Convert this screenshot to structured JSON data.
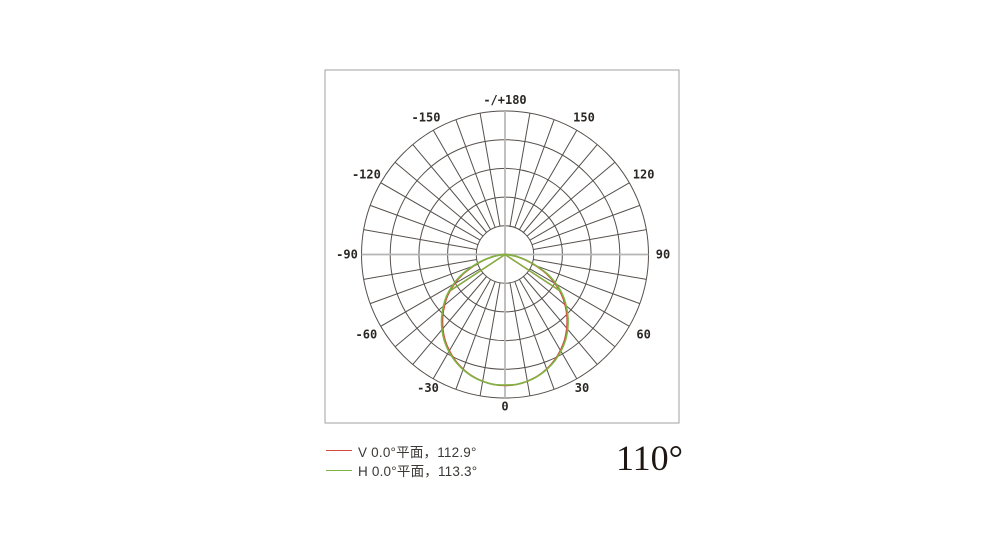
{
  "window": {
    "background": "#ffffff"
  },
  "chart_data": {
    "type": "polar",
    "title": "",
    "angle_unit": "degrees",
    "orientation": "0 at bottom, +/-90 horizontal, -/+180 at top; negative angles left, positive right",
    "angle_grid_step_deg": 10,
    "angle_label_step_deg": 30,
    "radial_rings": 5,
    "peak_radius_rel": 0.913,
    "grid_color": "#56504c",
    "axis_cross_color": "#b5b5b5",
    "frame_color": "#a0a0a0",
    "angle_labels": [
      {
        "text": "-/+180",
        "angle_deg": 180
      },
      {
        "text": "150",
        "angle_deg": 150
      },
      {
        "text": "120",
        "angle_deg": 120
      },
      {
        "text": "90",
        "angle_deg": 90
      },
      {
        "text": "60",
        "angle_deg": 60
      },
      {
        "text": "30",
        "angle_deg": 30
      },
      {
        "text": "0",
        "angle_deg": 0
      },
      {
        "text": "-30",
        "angle_deg": -30
      },
      {
        "text": "-60",
        "angle_deg": -60
      },
      {
        "text": "-90",
        "angle_deg": -90
      },
      {
        "text": "-120",
        "angle_deg": -120
      },
      {
        "text": "-150",
        "angle_deg": -150
      }
    ],
    "series": [
      {
        "name": "V 0.0°平面",
        "beam_angle_deg": 112.9,
        "color": "#d6493f",
        "angles_deg": [
          -90,
          -85,
          -80,
          -75,
          -70,
          -65,
          -60,
          -55,
          -50,
          -45,
          -40,
          -35,
          -30,
          -25,
          -20,
          -15,
          -10,
          -5,
          0,
          5,
          10,
          15,
          20,
          25,
          30,
          35,
          40,
          45,
          50,
          55,
          60,
          65,
          70,
          75,
          80,
          85,
          90
        ],
        "values_rel": [
          0,
          0.03,
          0.091,
          0.167,
          0.253,
          0.354,
          0.444,
          0.529,
          0.603,
          0.673,
          0.738,
          0.798,
          0.849,
          0.894,
          0.932,
          0.962,
          0.983,
          0.996,
          1.0,
          0.996,
          0.982,
          0.961,
          0.93,
          0.892,
          0.846,
          0.794,
          0.734,
          0.669,
          0.599,
          0.525,
          0.44,
          0.35,
          0.25,
          0.165,
          0.09,
          0.03,
          0
        ]
      },
      {
        "name": "H 0.0°平面",
        "beam_angle_deg": 113.3,
        "color": "#7eb441",
        "angles_deg": [
          -90,
          -85,
          -80,
          -75,
          -70,
          -65,
          -60,
          -55,
          -50,
          -45,
          -40,
          -35,
          -30,
          -25,
          -20,
          -15,
          -10,
          -5,
          0,
          5,
          10,
          15,
          20,
          25,
          30,
          35,
          40,
          45,
          50,
          55,
          60,
          65,
          70,
          75,
          80,
          85,
          90
        ],
        "values_rel": [
          0,
          0.033,
          0.096,
          0.174,
          0.262,
          0.365,
          0.456,
          0.541,
          0.614,
          0.684,
          0.748,
          0.806,
          0.856,
          0.899,
          0.935,
          0.963,
          0.983,
          0.995,
          0.996,
          0.995,
          0.982,
          0.962,
          0.933,
          0.897,
          0.853,
          0.803,
          0.744,
          0.68,
          0.61,
          0.537,
          0.452,
          0.362,
          0.259,
          0.171,
          0.094,
          0.032,
          0
        ]
      }
    ]
  },
  "legend": {
    "items": [
      {
        "label": "V 0.0°平面，112.9°",
        "color": "#d6493f"
      },
      {
        "label": "H 0.0°平面，113.3°",
        "color": "#7eb441"
      }
    ]
  },
  "summary": {
    "beam_angle_label": "110°"
  }
}
